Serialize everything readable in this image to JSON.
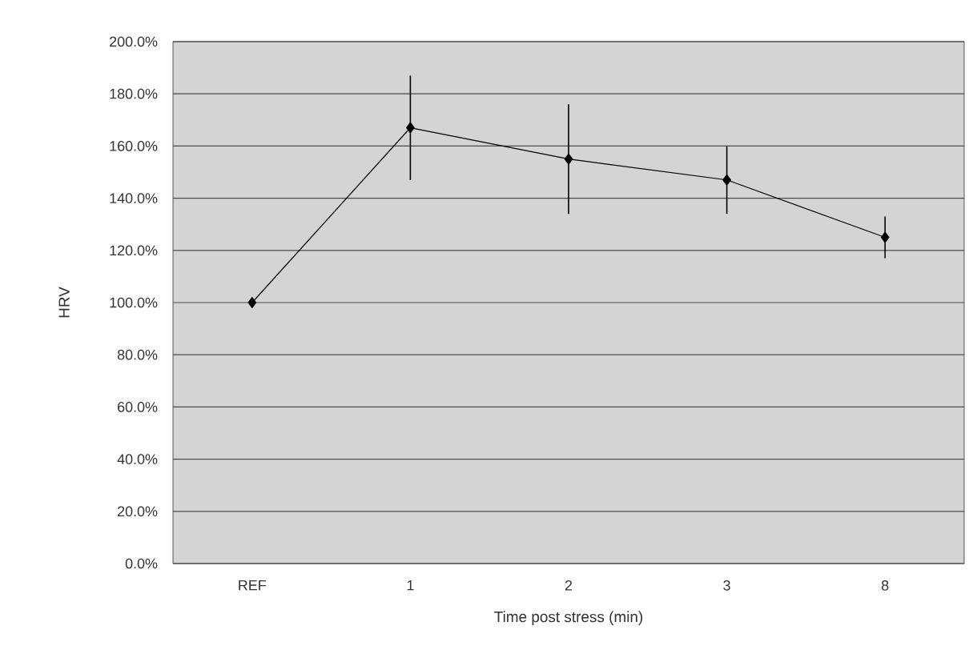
{
  "chart_data": {
    "type": "line",
    "xlabel": "Time post stress (min)",
    "ylabel": "HRV",
    "categories": [
      "REF",
      "1",
      "2",
      "3",
      "8"
    ],
    "series": [
      {
        "color": "#000000",
        "values": [
          100,
          167,
          155,
          147,
          125
        ],
        "errors": [
          null,
          20,
          21,
          13,
          8
        ]
      }
    ],
    "ylim": [
      0,
      200
    ],
    "yticks": [
      {
        "value": 0,
        "label": "0.0%"
      },
      {
        "value": 20,
        "label": "20.0%"
      },
      {
        "value": 40,
        "label": "40.0%"
      },
      {
        "value": 60,
        "label": "60.0%"
      },
      {
        "value": 80,
        "label": "80.0%"
      },
      {
        "value": 100,
        "label": "100.0%"
      },
      {
        "value": 120,
        "label": "120.0%"
      },
      {
        "value": 140,
        "label": "140.0%"
      },
      {
        "value": 160,
        "label": "160.0%"
      },
      {
        "value": 180,
        "label": "180.0%"
      },
      {
        "value": 200,
        "label": "200.0%"
      }
    ],
    "grid": "y",
    "marker": "diamond",
    "line_style": "solid"
  }
}
